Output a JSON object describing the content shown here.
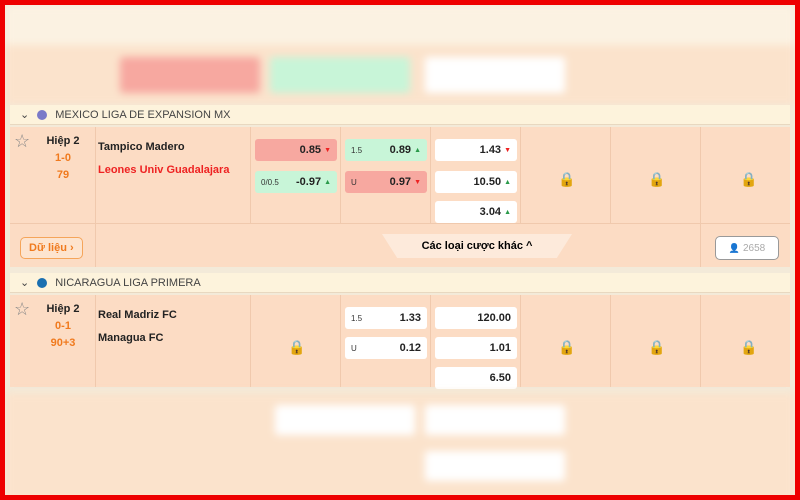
{
  "leagues": [
    {
      "name": "MEXICO LIGA DE EXPANSION MX",
      "dot_color": "#7a7ac8",
      "match": {
        "period": "Hiệp 2",
        "score": "1-0",
        "minute": "79",
        "home": "Tampico Madero",
        "away": "Leones Univ Guadalajara",
        "hdp": [
          {
            "line": "",
            "odd": "0.85",
            "trend": "down"
          },
          {
            "line": "0/0.5",
            "odd": "-0.97",
            "trend": "up"
          }
        ],
        "ou": [
          {
            "line": "1.5",
            "odd": "0.89",
            "trend": "up"
          },
          {
            "line": "U",
            "odd": "0.97",
            "trend": "down"
          }
        ],
        "x12": [
          {
            "odd": "1.43",
            "trend": "down"
          },
          {
            "odd": "10.50",
            "trend": "up"
          },
          {
            "odd": "3.04",
            "trend": "up"
          }
        ],
        "data_btn": "Dữ liệu ›",
        "more_bets": "Các loại cược khác ^",
        "viewers": "2658"
      }
    },
    {
      "name": "NICARAGUA LIGA PRIMERA",
      "dot_color": "#1a6fb0",
      "match": {
        "period": "Hiệp 2",
        "score": "0-1",
        "minute": "90+3",
        "home": "Real Madriz FC",
        "away": "Managua FC",
        "ou": [
          {
            "line": "1.5",
            "odd": "1.33"
          },
          {
            "line": "U",
            "odd": "0.12"
          }
        ],
        "x12": [
          {
            "odd": "120.00"
          },
          {
            "odd": "1.01"
          },
          {
            "odd": "6.50"
          }
        ]
      }
    }
  ],
  "arrows": {
    "up": "▲",
    "down": "▼"
  },
  "icons": {
    "star": "☆",
    "lock": "🔒",
    "chevron": "⌄",
    "user": "👤"
  }
}
